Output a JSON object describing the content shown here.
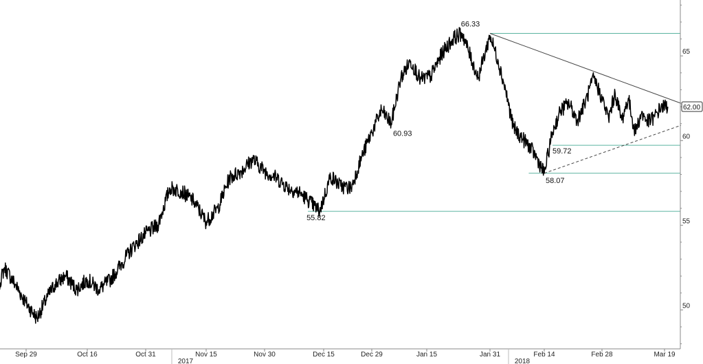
{
  "chart_data": {
    "type": "line",
    "title": "",
    "xlabel": "",
    "ylabel": "",
    "ylim": [
      47.7,
      68.3
    ],
    "y_ticks": [
      50,
      55,
      60,
      65
    ],
    "x_tick_labels": [
      "Sep 29",
      "Oct 16",
      "Oct 31",
      "Nov 15",
      "Nov 30",
      "Dec 15",
      "Dec 29",
      "Jan 15",
      "Jan 31",
      "Feb 14",
      "Feb 28",
      "Mar 19"
    ],
    "year_labels": [
      "2017",
      "2018"
    ],
    "grid": false,
    "legend": "none",
    "last_value": "62.00",
    "series": [
      {
        "x": [
          "2017-09-20",
          "2017-09-23",
          "2017-09-26",
          "2017-09-29",
          "2017-10-02",
          "2017-10-05",
          "2017-10-07",
          "2017-10-10",
          "2017-10-13",
          "2017-10-16",
          "2017-10-19",
          "2017-10-22",
          "2017-10-25",
          "2017-10-28",
          "2017-10-31",
          "2017-11-03",
          "2017-11-06",
          "2017-11-09",
          "2017-11-12",
          "2017-11-15",
          "2017-11-18",
          "2017-11-21",
          "2017-11-24",
          "2017-11-27",
          "2017-11-30",
          "2017-12-03",
          "2017-12-06",
          "2017-12-09",
          "2017-12-11",
          "2017-12-14",
          "2017-12-17",
          "2017-12-20",
          "2017-12-23",
          "2017-12-26",
          "2017-12-29",
          "2018-01-01",
          "2018-01-04",
          "2018-01-07",
          "2018-01-10",
          "2018-01-13",
          "2018-01-16",
          "2018-01-19",
          "2018-01-22",
          "2018-01-24",
          "2018-01-26",
          "2018-01-28",
          "2018-01-31",
          "2018-02-02",
          "2018-02-04",
          "2018-02-06",
          "2018-02-08",
          "2018-02-10",
          "2018-02-12",
          "2018-02-14",
          "2018-02-16",
          "2018-02-18",
          "2018-02-20",
          "2018-02-22",
          "2018-02-24",
          "2018-02-26",
          "2018-02-28",
          "2018-03-02",
          "2018-03-04",
          "2018-03-06",
          "2018-03-08",
          "2018-03-10",
          "2018-03-12",
          "2018-03-14",
          "2018-03-16",
          "2018-03-18",
          "2018-03-20"
        ],
        "y": [
          50.5,
          52.5,
          51.5,
          50.4,
          49.5,
          50.8,
          51.5,
          52.0,
          51.2,
          51.8,
          51.2,
          51.8,
          52.8,
          53.8,
          54.5,
          55.0,
          57.2,
          57.0,
          56.4,
          55.2,
          56.0,
          57.8,
          58.2,
          58.9,
          58.2,
          57.8,
          57.2,
          56.9,
          56.5,
          55.82,
          57.9,
          57.3,
          57.2,
          59.0,
          60.5,
          61.8,
          61.0,
          63.7,
          64.7,
          63.6,
          63.8,
          65.2,
          66.1,
          66.33,
          65.0,
          63.7,
          66.2,
          64.8,
          63.0,
          60.8,
          60.2,
          59.72,
          59.0,
          58.07,
          60.5,
          61.8,
          62.2,
          61.2,
          62.3,
          63.7,
          62.5,
          61.3,
          62.8,
          61.2,
          62.5,
          60.5,
          61.6,
          61.1,
          61.4,
          62.0,
          62.0
        ]
      }
    ],
    "annotations": [
      {
        "label": "66.33",
        "x": "2018-01-24",
        "y": 66.33
      },
      {
        "label": "60.93",
        "x": "2018-01-05",
        "y": 60.93
      },
      {
        "label": "59.72",
        "x": "2018-02-15",
        "y": 59.72
      },
      {
        "label": "58.07",
        "x": "2018-02-14",
        "y": 58.07
      },
      {
        "label": "55.82",
        "x": "2017-12-11",
        "y": 55.82
      }
    ],
    "support_lines": [
      {
        "y": 66.33,
        "x_start": "2018-01-31"
      },
      {
        "y": 59.72,
        "x_start": "2018-02-16"
      },
      {
        "y": 58.07,
        "x_start": "2018-02-10"
      },
      {
        "y": 55.82,
        "x_start": "2017-12-11"
      }
    ],
    "trendlines": [
      {
        "style": "solid",
        "from": {
          "x": "2018-01-31",
          "y": 66.33
        },
        "to": {
          "x": "2018-03-24",
          "y": 62.2
        }
      },
      {
        "style": "dashed",
        "from": {
          "x": "2018-02-14",
          "y": 58.07
        },
        "to": {
          "x": "2018-03-24",
          "y": 60.9
        }
      }
    ],
    "colors": {
      "line": "#000000",
      "support": "#5ab4a0",
      "trend": "#444444",
      "axis": "#888888",
      "label_box": "#ffffff"
    }
  }
}
